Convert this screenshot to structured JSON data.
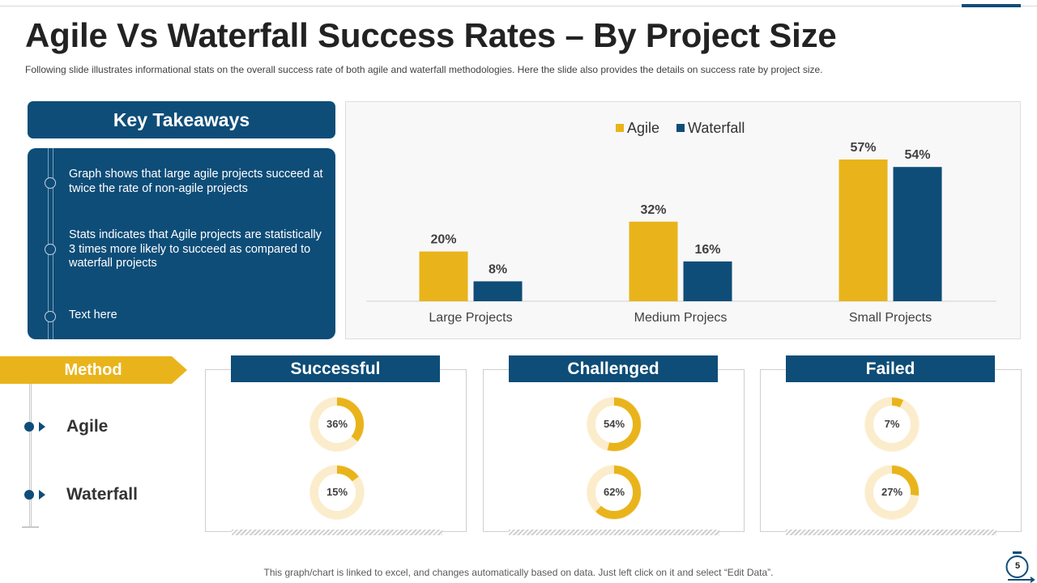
{
  "title": "Agile Vs Waterfall Success Rates – By Project Size",
  "subtitle": "Following slide illustrates informational stats on the overall success rate of both agile and waterfall methodologies. Here the slide also provides the details on success rate by project size.",
  "key_takeaways": {
    "heading": "Key Takeaways",
    "items": [
      "Graph shows that large agile projects succeed at twice the rate of non-agile projects",
      "Stats indicates that Agile projects are statistically 3 times more likely to succeed as compared to waterfall projects",
      "Text here"
    ]
  },
  "colors": {
    "navy": "#0e4d78",
    "gold": "#e9b41b",
    "donut_track": "#fbeccc"
  },
  "chart_data": [
    {
      "type": "bar",
      "categories": [
        "Large Projects",
        "Medium Projecs",
        "Small Projects"
      ],
      "series": [
        {
          "name": "Agile",
          "values": [
            20,
            32,
            57
          ],
          "color": "#e9b41b"
        },
        {
          "name": "Waterfall",
          "values": [
            8,
            16,
            54
          ],
          "color": "#0e4d78"
        }
      ],
      "data_labels": [
        [
          "20%",
          "32%",
          "57%"
        ],
        [
          "8%",
          "16%",
          "54%"
        ]
      ],
      "ylim": [
        0,
        60
      ],
      "legend": "top-center",
      "grid": false
    },
    {
      "type": "pie",
      "variant": "donut",
      "rows": [
        "Agile",
        "Waterfall"
      ],
      "categories": [
        "Successful",
        "Challenged",
        "Failed"
      ],
      "values": {
        "Agile": [
          36,
          54,
          7
        ],
        "Waterfall": [
          15,
          62,
          27
        ]
      },
      "labels": {
        "Agile": [
          "36%",
          "54%",
          "7%"
        ],
        "Waterfall": [
          "15%",
          "62%",
          "27%"
        ]
      }
    }
  ],
  "method": {
    "label": "Method",
    "rows": [
      "Agile",
      "Waterfall"
    ]
  },
  "categories": [
    "Successful",
    "Challenged",
    "Failed"
  ],
  "footnote": "This graph/chart is linked to excel, and changes automatically based on data. Just left click on it and select “Edit Data”.",
  "page_number": "5"
}
